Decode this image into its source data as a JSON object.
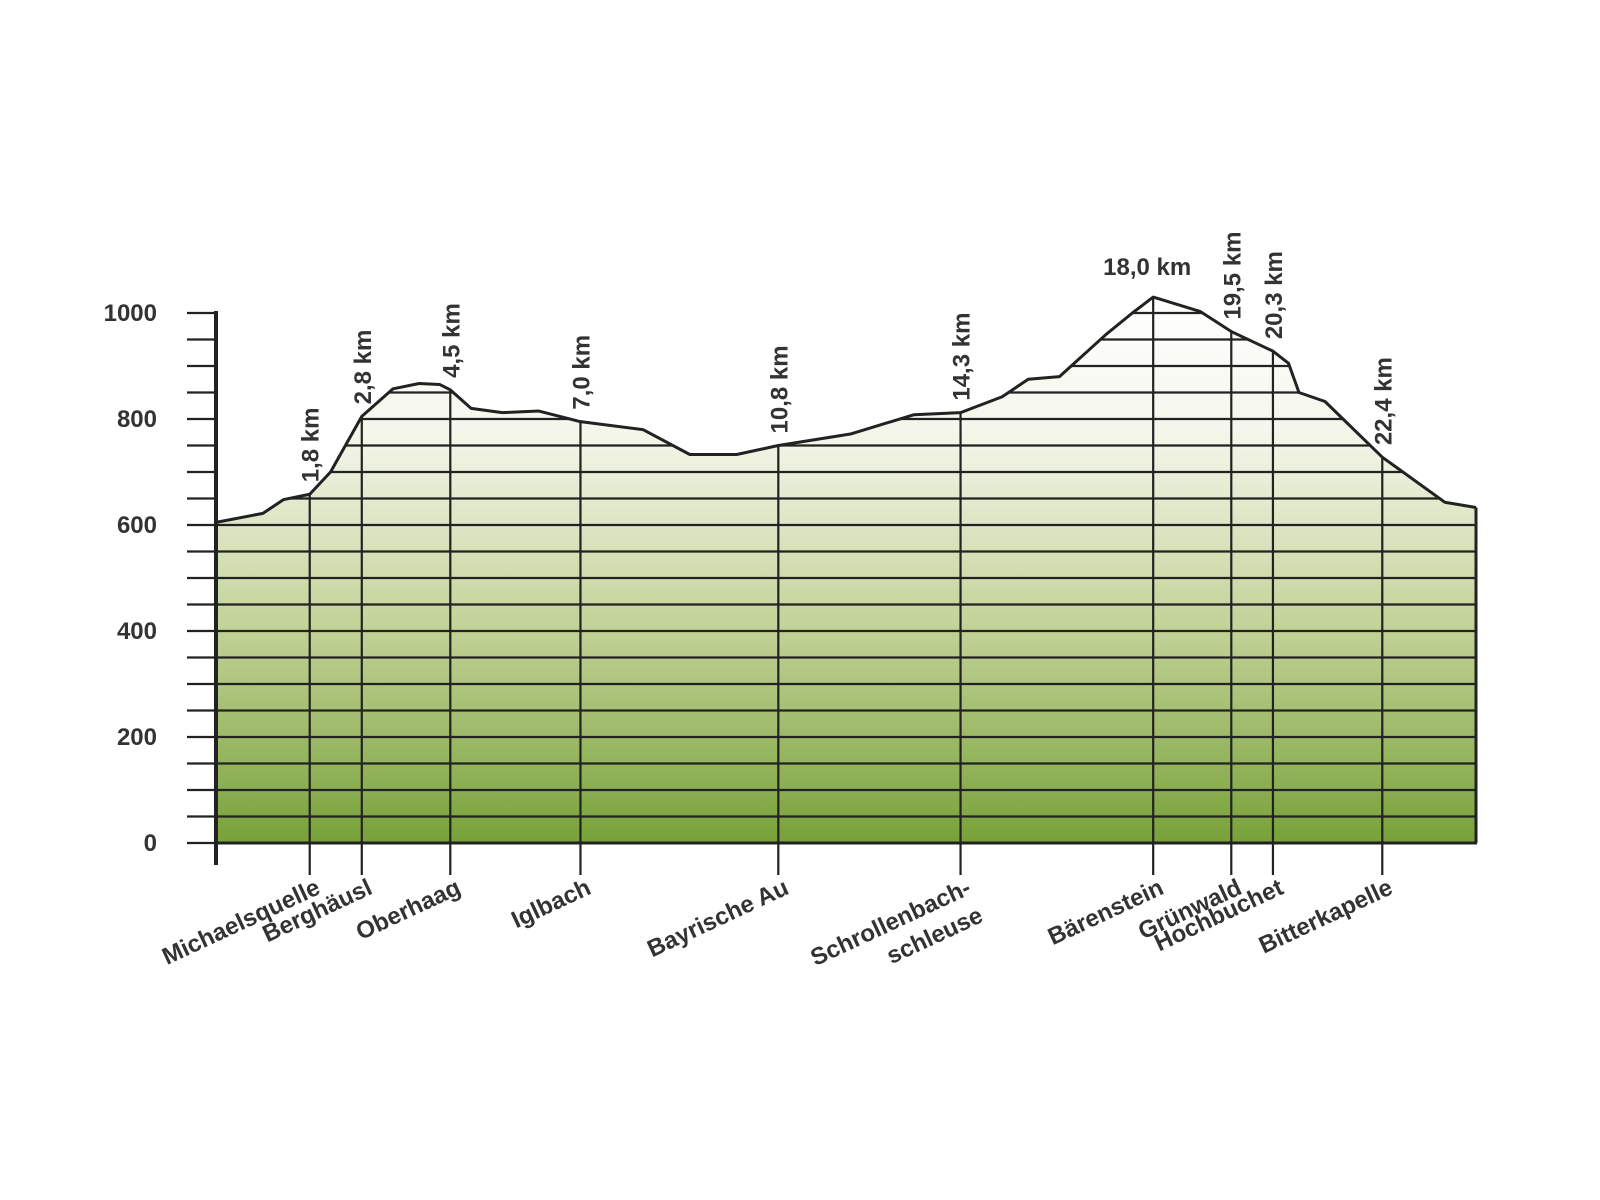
{
  "chart_data": {
    "type": "area",
    "colors": {
      "fill_top": "#ffffff",
      "fill_mid": "#c3d399",
      "fill_bottom": "#79a23a",
      "line": "#222222",
      "text": "#333333"
    },
    "yticks": [
      "0",
      "200",
      "400",
      "600",
      "800",
      "1000"
    ],
    "ylim": [
      0,
      1000
    ],
    "y_minor_step": 50,
    "xlim": [
      0,
      24.2
    ],
    "grid": true,
    "profile": [
      {
        "x": 0.0,
        "y": 605
      },
      {
        "x": 0.9,
        "y": 622
      },
      {
        "x": 1.3,
        "y": 648
      },
      {
        "x": 1.8,
        "y": 658
      },
      {
        "x": 2.2,
        "y": 700
      },
      {
        "x": 2.8,
        "y": 805
      },
      {
        "x": 3.4,
        "y": 857
      },
      {
        "x": 3.9,
        "y": 867
      },
      {
        "x": 4.3,
        "y": 865
      },
      {
        "x": 4.5,
        "y": 855
      },
      {
        "x": 4.9,
        "y": 820
      },
      {
        "x": 5.5,
        "y": 812
      },
      {
        "x": 6.2,
        "y": 815
      },
      {
        "x": 7.0,
        "y": 795
      },
      {
        "x": 8.2,
        "y": 780
      },
      {
        "x": 9.1,
        "y": 733
      },
      {
        "x": 10.0,
        "y": 733
      },
      {
        "x": 10.8,
        "y": 750
      },
      {
        "x": 12.2,
        "y": 772
      },
      {
        "x": 13.4,
        "y": 808
      },
      {
        "x": 14.3,
        "y": 812
      },
      {
        "x": 15.1,
        "y": 842
      },
      {
        "x": 15.6,
        "y": 875
      },
      {
        "x": 16.2,
        "y": 880
      },
      {
        "x": 17.1,
        "y": 960
      },
      {
        "x": 17.6,
        "y": 1000
      },
      {
        "x": 18.0,
        "y": 1030
      },
      {
        "x": 18.9,
        "y": 1003
      },
      {
        "x": 19.5,
        "y": 965
      },
      {
        "x": 20.3,
        "y": 928
      },
      {
        "x": 20.6,
        "y": 905
      },
      {
        "x": 20.8,
        "y": 850
      },
      {
        "x": 21.3,
        "y": 833
      },
      {
        "x": 22.4,
        "y": 728
      },
      {
        "x": 23.6,
        "y": 643
      },
      {
        "x": 24.2,
        "y": 633
      }
    ],
    "waypoints": [
      {
        "x": 1.8,
        "km": "1,8 km",
        "name": "Michaelsquelle"
      },
      {
        "x": 2.8,
        "km": "2,8 km",
        "name": "Berghäusl"
      },
      {
        "x": 4.5,
        "km": "4,5 km",
        "name": "Oberhaag"
      },
      {
        "x": 7.0,
        "km": "7,0 km",
        "name": "Iglbach"
      },
      {
        "x": 10.8,
        "km": "10,8 km",
        "name": "Bayrische Au"
      },
      {
        "x": 14.3,
        "km": "14,3 km",
        "name": "Schrollenbach-",
        "name2": "schleuse"
      },
      {
        "x": 18.0,
        "km": "18,0 km",
        "name": "Bärenstein",
        "km_horizontal": true
      },
      {
        "x": 19.5,
        "km": "19,5 km",
        "name": "Grünwald"
      },
      {
        "x": 20.3,
        "km": "20,3 km",
        "name": "Hochbuchet"
      },
      {
        "x": 22.4,
        "km": "22,4 km",
        "name": "Bitterkapelle"
      }
    ]
  }
}
